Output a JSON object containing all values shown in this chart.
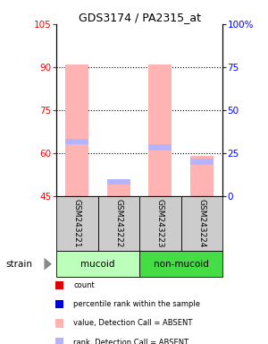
{
  "title": "GDS3174 / PA2315_at",
  "samples": [
    "GSM243221",
    "GSM243222",
    "GSM243223",
    "GSM243224"
  ],
  "groups": [
    "mucoid",
    "mucoid",
    "non-mucoid",
    "non-mucoid"
  ],
  "group_colors": {
    "mucoid": "#bbffbb",
    "non-mucoid": "#44dd44"
  },
  "ylim_left": [
    45,
    105
  ],
  "ylim_right": [
    0,
    100
  ],
  "yticks_left": [
    45,
    60,
    75,
    90,
    105
  ],
  "yticks_right": [
    0,
    25,
    50,
    75,
    100
  ],
  "ytick_labels_right": [
    "0",
    "25",
    "50",
    "75",
    "100%"
  ],
  "bar_bottom": 45,
  "bar_color_absent": "#ffb3b3",
  "rank_color_absent": "#b3b3ff",
  "bar_values": [
    91,
    50,
    91,
    59
  ],
  "rank_values": [
    64,
    50,
    62,
    57
  ],
  "bar_width": 0.55,
  "sample_bg_color": "#cccccc",
  "legend_items": [
    {
      "color": "#dd0000",
      "label": "count"
    },
    {
      "color": "#0000dd",
      "label": "percentile rank within the sample"
    },
    {
      "color": "#ffb3b3",
      "label": "value, Detection Call = ABSENT"
    },
    {
      "color": "#b3b3ff",
      "label": "rank, Detection Call = ABSENT"
    }
  ]
}
